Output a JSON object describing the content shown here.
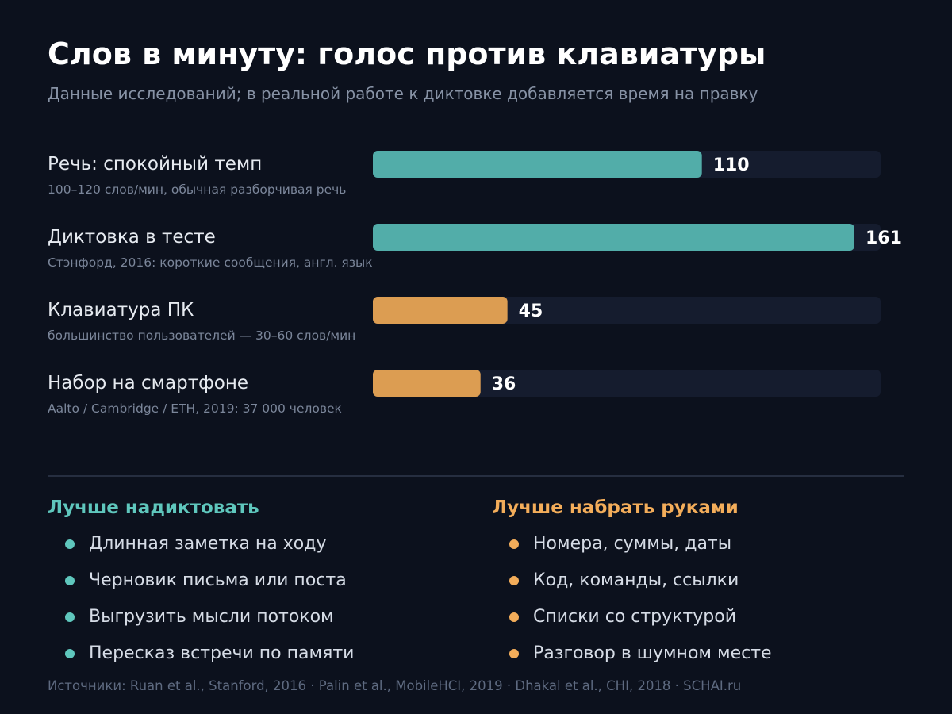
{
  "title": "Слов в минуту: голос против клавиатуры",
  "subtitle": "Данные исследований; в реальной работе к диктовке добавляется время на правку",
  "colors": {
    "voice": "#52ada9",
    "keyboard": "#dc9d52",
    "track": "#151c2e"
  },
  "chart_data": {
    "type": "bar",
    "orientation": "horizontal",
    "title": "Слов в минуту: голос против клавиатуры",
    "subtitle": "Данные исследований; в реальной работе к диктовке добавляется время на правку",
    "xlim": [
      0,
      170
    ],
    "grid": false,
    "bars": [
      {
        "label": "Речь: спокойный темп",
        "note": "100–120 слов/мин, обычная разборчивая речь",
        "value": 110,
        "value_label": "110",
        "group": "voice"
      },
      {
        "label": "Диктовка в тесте",
        "note": "Стэнфорд, 2016: короткие сообщения, англ. язык",
        "value": 161,
        "value_label": "161",
        "group": "voice"
      },
      {
        "label": "Клавиатура ПК",
        "note": "большинство пользователей — 30–60 слов/мин",
        "value": 45,
        "value_label": "45",
        "group": "keyboard"
      },
      {
        "label": "Набор на смартфоне",
        "note": "Aalto / Cambridge / ETH, 2019: 37 000 человек",
        "value": 36,
        "value_label": "36",
        "group": "keyboard"
      }
    ]
  },
  "dictate": {
    "heading": "Лучше надиктовать",
    "items": [
      "Длинная заметка на ходу",
      "Черновик письма или поста",
      "Выгрузить мысли потоком",
      "Пересказ встречи по памяти"
    ]
  },
  "type": {
    "heading": "Лучше набрать руками",
    "items": [
      "Номера, суммы, даты",
      "Код, команды, ссылки",
      "Списки со структурой",
      "Разговор в шумном месте"
    ]
  },
  "sources": "Источники: Ruan et al., Stanford, 2016 · Palin et al., MobileHCI, 2019 · Dhakal et al., CHI, 2018 · SCHAI.ru"
}
